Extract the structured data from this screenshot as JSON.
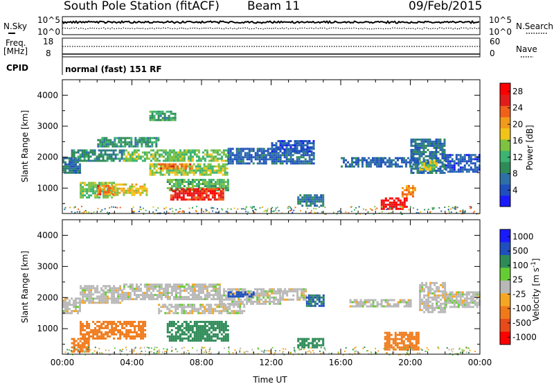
{
  "header": {
    "station": "South Pole Station (fitACF)",
    "beam": "Beam 11",
    "date": "09/Feb/2015"
  },
  "panel_labels": {
    "nsky": "N.Sky",
    "nsearch": "N.Search",
    "freq": "Freq.",
    "mhz": "[MHz]",
    "cpid": "CPID",
    "nave": "Nave",
    "cpid_value": "normal (fast) 151 RF",
    "nsky_top": "10^5",
    "nsky_bot": "10^0",
    "nsearch_top": "10^5",
    "nsearch_bot": "10^0",
    "freq_top": "18",
    "freq_bot": "8",
    "nave_top": "60",
    "nave_bot": "0"
  },
  "colors": {
    "power_scale": [
      "#1a1aff",
      "#1f4fbf",
      "#2e6fa8",
      "#2e8b57",
      "#3cb371",
      "#7fc241",
      "#f0c419",
      "#f29a1b",
      "#f0601a",
      "#e21b1b",
      "#ff0000"
    ],
    "velocity_scale": [
      "#1a1aff",
      "#1f4fbf",
      "#2e8b57",
      "#66cc33",
      "#b8b8b8",
      "#f5a623",
      "#f07a1a",
      "#e84a1a",
      "#ff0000"
    ]
  },
  "chart_data": [
    {
      "type": "heatmap",
      "name": "power",
      "ylabel": "Slant Range [km]",
      "xlabel": "",
      "ylim": [
        180,
        4500
      ],
      "xlim": [
        0,
        24
      ],
      "yticks": [
        "1000",
        "2000",
        "3000",
        "4000"
      ],
      "xticks": [],
      "colorbar": {
        "label": "Power [dB]",
        "ticks": [
          "4",
          "8",
          "12",
          "16",
          "20",
          "24",
          "28"
        ],
        "range": [
          0,
          30
        ]
      },
      "regions": [
        {
          "t0": 0.0,
          "t1": 1.0,
          "r0": 1500,
          "r1": 2000,
          "level": 7
        },
        {
          "t0": 0.5,
          "t1": 3.5,
          "r0": 1850,
          "r1": 2250,
          "level": 9
        },
        {
          "t0": 1.0,
          "t1": 3.0,
          "r0": 700,
          "r1": 1200,
          "level": 14
        },
        {
          "t0": 2.0,
          "t1": 3.0,
          "r0": 800,
          "r1": 1100,
          "level": 22
        },
        {
          "t0": 3.0,
          "t1": 4.8,
          "r0": 800,
          "r1": 1150,
          "level": 18
        },
        {
          "t0": 2.0,
          "t1": 5.5,
          "r0": 2350,
          "r1": 2650,
          "level": 10
        },
        {
          "t0": 3.5,
          "t1": 9.5,
          "r0": 1900,
          "r1": 2250,
          "level": 14
        },
        {
          "t0": 5.0,
          "t1": 9.5,
          "r0": 1450,
          "r1": 1800,
          "level": 15
        },
        {
          "t0": 5.5,
          "t1": 7.5,
          "r0": 1600,
          "r1": 1800,
          "level": 22
        },
        {
          "t0": 6.0,
          "t1": 9.5,
          "r0": 900,
          "r1": 1300,
          "level": 13
        },
        {
          "t0": 6.2,
          "t1": 9.2,
          "r0": 620,
          "r1": 1000,
          "level": 26
        },
        {
          "t0": 5.0,
          "t1": 6.5,
          "r0": 3200,
          "r1": 3500,
          "level": 11
        },
        {
          "t0": 9.5,
          "t1": 14.5,
          "r0": 1800,
          "r1": 2300,
          "level": 6
        },
        {
          "t0": 12.0,
          "t1": 14.5,
          "r0": 2150,
          "r1": 2550,
          "level": 5
        },
        {
          "t0": 13.5,
          "t1": 15.0,
          "r0": 400,
          "r1": 800,
          "level": 8
        },
        {
          "t0": 16.0,
          "t1": 20.5,
          "r0": 1700,
          "r1": 2000,
          "level": 6
        },
        {
          "t0": 18.3,
          "t1": 19.8,
          "r0": 350,
          "r1": 700,
          "level": 29
        },
        {
          "t0": 19.5,
          "t1": 20.3,
          "r0": 700,
          "r1": 1100,
          "level": 21
        },
        {
          "t0": 20.0,
          "t1": 22.0,
          "r0": 1500,
          "r1": 2600,
          "level": 7
        },
        {
          "t0": 20.5,
          "t1": 21.5,
          "r0": 1600,
          "r1": 1900,
          "level": 16
        },
        {
          "t0": 22.0,
          "t1": 24.0,
          "r0": 1500,
          "r1": 2100,
          "level": 5
        }
      ]
    },
    {
      "type": "heatmap",
      "name": "velocity",
      "ylabel": "Slant Range [km]",
      "xlabel": "Time UT",
      "ylim": [
        180,
        4500
      ],
      "xlim": [
        0,
        24
      ],
      "yticks": [
        "1000",
        "2000",
        "3000",
        "4000"
      ],
      "xticks": [
        "00:00",
        "04:00",
        "08:00",
        "12:00",
        "16:00",
        "20:00",
        "00:00"
      ],
      "colorbar": {
        "label": "Velocity [m s^-1]",
        "ticks": [
          "1000",
          "500",
          "100",
          "25",
          "-25",
          "-100",
          "-500",
          "-1000"
        ],
        "range": [
          -1200,
          1200
        ]
      },
      "regions": [
        {
          "t0": 0.0,
          "t1": 1.0,
          "r0": 1500,
          "r1": 2000,
          "value": 0
        },
        {
          "t0": 1.0,
          "t1": 3.5,
          "r0": 1800,
          "r1": 2400,
          "value": 0
        },
        {
          "t0": 1.0,
          "t1": 4.8,
          "r0": 700,
          "r1": 1250,
          "value": -150
        },
        {
          "t0": 0.5,
          "t1": 1.5,
          "r0": 250,
          "r1": 700,
          "value": -200
        },
        {
          "t0": 3.5,
          "t1": 9.0,
          "r0": 1950,
          "r1": 2450,
          "value": 0
        },
        {
          "t0": 6.0,
          "t1": 9.5,
          "r0": 600,
          "r1": 1250,
          "value": 120
        },
        {
          "t0": 5.5,
          "t1": 10.5,
          "r0": 1500,
          "r1": 1800,
          "value": 0
        },
        {
          "t0": 9.0,
          "t1": 12.5,
          "r0": 1800,
          "r1": 2300,
          "value": 0
        },
        {
          "t0": 9.5,
          "t1": 11.0,
          "r0": 2000,
          "r1": 2200,
          "value": 600
        },
        {
          "t0": 12.5,
          "t1": 14.0,
          "r0": 1900,
          "r1": 2300,
          "value": 0
        },
        {
          "t0": 14.0,
          "t1": 15.0,
          "r0": 1700,
          "r1": 2100,
          "value": 300
        },
        {
          "t0": 13.5,
          "t1": 15.0,
          "r0": 400,
          "r1": 700,
          "value": 150
        },
        {
          "t0": 16.5,
          "t1": 20.0,
          "r0": 1700,
          "r1": 1950,
          "value": 0
        },
        {
          "t0": 18.5,
          "t1": 20.5,
          "r0": 300,
          "r1": 900,
          "value": -200
        },
        {
          "t0": 20.5,
          "t1": 22.0,
          "r0": 1500,
          "r1": 2500,
          "value": 0
        },
        {
          "t0": 22.0,
          "t1": 24.0,
          "r0": 1700,
          "r1": 2200,
          "value": 0
        }
      ]
    }
  ]
}
